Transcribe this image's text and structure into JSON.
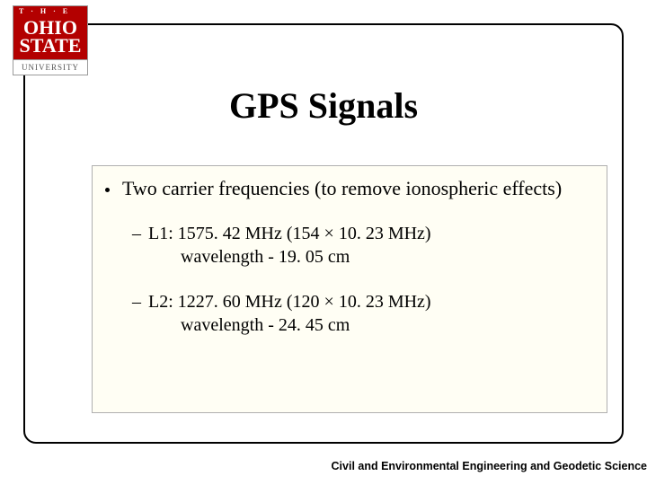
{
  "logo": {
    "the": "T · H · E",
    "line1": "OHIO",
    "line2": "STATE",
    "bottom": "UNIVERSITY",
    "red": "#b30000"
  },
  "title": "GPS Signals",
  "content": {
    "main_bullet": "Two carrier frequencies (to remove ionospheric effects)",
    "sub1_line1": "L1:  1575. 42 MHz (154 × 10. 23 MHz)",
    "sub1_line2": "wavelength - 19. 05 cm",
    "sub2_line1": "L2:  1227. 60 MHz (120 × 10. 23 MHz)",
    "sub2_line2": "wavelength - 24. 45 cm",
    "box_bg": "#fffef4",
    "box_border": "#b0b0b0"
  },
  "footer": "Civil and Environmental Engineering and Geodetic Science",
  "frame_border": "#000000",
  "text_color": "#000000"
}
